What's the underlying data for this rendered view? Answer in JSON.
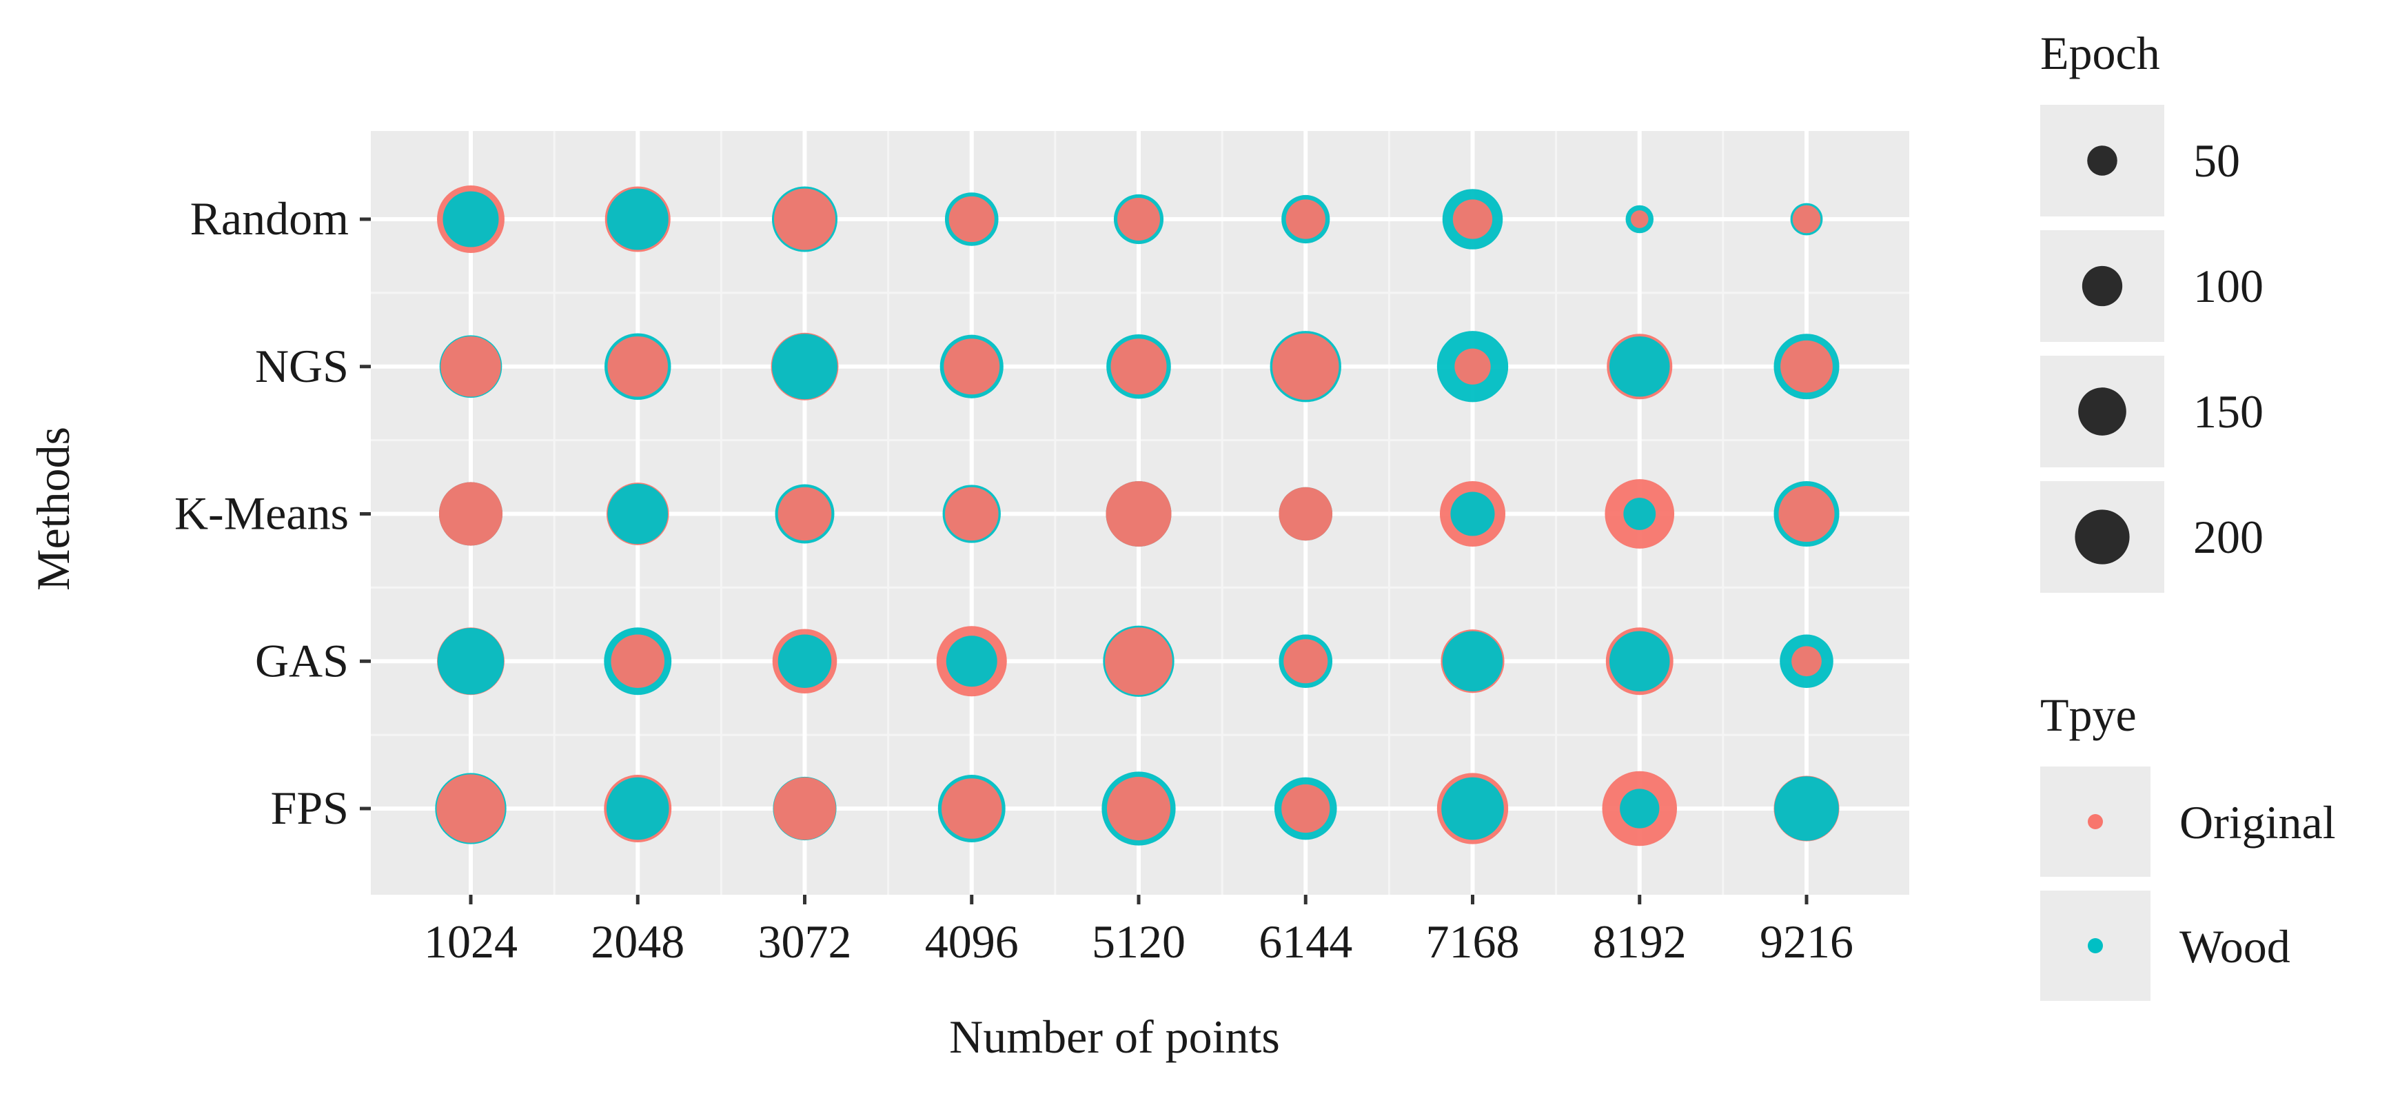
{
  "chart_data": {
    "type": "scatter",
    "title": "",
    "xlabel": "Number of points",
    "ylabel": "Methods",
    "x_categories": [
      "1024",
      "2048",
      "3072",
      "4096",
      "5120",
      "6144",
      "7168",
      "8192",
      "9216"
    ],
    "y_categories": [
      "FPS",
      "GAS",
      "K-Means",
      "NGS",
      "Random"
    ],
    "grid": true,
    "colors": {
      "Original": "#f8766d",
      "Wood": "#00bfc4",
      "panel": "#ebebeb"
    },
    "size_legend": {
      "title": "Epoch",
      "values": [
        50,
        100,
        150,
        200
      ]
    },
    "color_legend": {
      "title": "Tpye",
      "entries": [
        "Original",
        "Wood"
      ]
    },
    "series": [
      {
        "name": "Wood",
        "points": [
          {
            "x": "1024",
            "y": "Random",
            "epoch": 120
          },
          {
            "x": "2048",
            "y": "Random",
            "epoch": 145
          },
          {
            "x": "3072",
            "y": "Random",
            "epoch": 165
          },
          {
            "x": "4096",
            "y": "Random",
            "epoch": 110
          },
          {
            "x": "5120",
            "y": "Random",
            "epoch": 95
          },
          {
            "x": "6144",
            "y": "Random",
            "epoch": 90
          },
          {
            "x": "7168",
            "y": "Random",
            "epoch": 140
          },
          {
            "x": "8192",
            "y": "Random",
            "epoch": 30
          },
          {
            "x": "9216",
            "y": "Random",
            "epoch": 40
          },
          {
            "x": "1024",
            "y": "NGS",
            "epoch": 150
          },
          {
            "x": "2048",
            "y": "NGS",
            "epoch": 170
          },
          {
            "x": "3072",
            "y": "NGS",
            "epoch": 165
          },
          {
            "x": "4096",
            "y": "NGS",
            "epoch": 155
          },
          {
            "x": "5120",
            "y": "NGS",
            "epoch": 160
          },
          {
            "x": "6144",
            "y": "NGS",
            "epoch": 195
          },
          {
            "x": "7168",
            "y": "NGS",
            "epoch": 195
          },
          {
            "x": "8192",
            "y": "NGS",
            "epoch": 140
          },
          {
            "x": "9216",
            "y": "NGS",
            "epoch": 165
          },
          {
            "x": "1024",
            "y": "K-Means",
            "epoch": 155
          },
          {
            "x": "2048",
            "y": "K-Means",
            "epoch": 140
          },
          {
            "x": "3072",
            "y": "K-Means",
            "epoch": 135
          },
          {
            "x": "4096",
            "y": "K-Means",
            "epoch": 130
          },
          {
            "x": "5120",
            "y": "K-Means",
            "epoch": 165
          },
          {
            "x": "6144",
            "y": "K-Means",
            "epoch": 110
          },
          {
            "x": "7168",
            "y": "K-Means",
            "epoch": 75
          },
          {
            "x": "8192",
            "y": "K-Means",
            "epoch": 40
          },
          {
            "x": "9216",
            "y": "K-Means",
            "epoch": 165
          },
          {
            "x": "1024",
            "y": "GAS",
            "epoch": 170
          },
          {
            "x": "2048",
            "y": "GAS",
            "epoch": 175
          },
          {
            "x": "3072",
            "y": "GAS",
            "epoch": 110
          },
          {
            "x": "4096",
            "y": "GAS",
            "epoch": 100
          },
          {
            "x": "5120",
            "y": "GAS",
            "epoch": 195
          },
          {
            "x": "6144",
            "y": "GAS",
            "epoch": 110
          },
          {
            "x": "7168",
            "y": "GAS",
            "epoch": 140
          },
          {
            "x": "8192",
            "y": "GAS",
            "epoch": 140
          },
          {
            "x": "9216",
            "y": "GAS",
            "epoch": 110
          },
          {
            "x": "1024",
            "y": "FPS",
            "epoch": 195
          },
          {
            "x": "2048",
            "y": "FPS",
            "epoch": 150
          },
          {
            "x": "3072",
            "y": "FPS",
            "epoch": 155
          },
          {
            "x": "4096",
            "y": "FPS",
            "epoch": 175
          },
          {
            "x": "5120",
            "y": "FPS",
            "epoch": 210
          },
          {
            "x": "6144",
            "y": "FPS",
            "epoch": 150
          },
          {
            "x": "7168",
            "y": "FPS",
            "epoch": 150
          },
          {
            "x": "8192",
            "y": "FPS",
            "epoch": 60
          },
          {
            "x": "9216",
            "y": "FPS",
            "epoch": 160
          }
        ]
      },
      {
        "name": "Original",
        "points": [
          {
            "x": "1024",
            "y": "Random",
            "epoch": 175
          },
          {
            "x": "2048",
            "y": "Random",
            "epoch": 165
          },
          {
            "x": "3072",
            "y": "Random",
            "epoch": 145
          },
          {
            "x": "4096",
            "y": "Random",
            "epoch": 80
          },
          {
            "x": "5120",
            "y": "Random",
            "epoch": 70
          },
          {
            "x": "6144",
            "y": "Random",
            "epoch": 60
          },
          {
            "x": "7168",
            "y": "Random",
            "epoch": 60
          },
          {
            "x": "8192",
            "y": "Random",
            "epoch": 12
          },
          {
            "x": "9216",
            "y": "Random",
            "epoch": 30
          },
          {
            "x": "1024",
            "y": "NGS",
            "epoch": 140
          },
          {
            "x": "2048",
            "y": "NGS",
            "epoch": 140
          },
          {
            "x": "3072",
            "y": "NGS",
            "epoch": 175
          },
          {
            "x": "4096",
            "y": "NGS",
            "epoch": 120
          },
          {
            "x": "5120",
            "y": "NGS",
            "epoch": 120
          },
          {
            "x": "6144",
            "y": "NGS",
            "epoch": 170
          },
          {
            "x": "7168",
            "y": "NGS",
            "epoch": 50
          },
          {
            "x": "8192",
            "y": "NGS",
            "epoch": 165
          },
          {
            "x": "9216",
            "y": "NGS",
            "epoch": 105
          },
          {
            "x": "1024",
            "y": "K-Means",
            "epoch": 155
          },
          {
            "x": "2048",
            "y": "K-Means",
            "epoch": 150
          },
          {
            "x": "3072",
            "y": "K-Means",
            "epoch": 110
          },
          {
            "x": "4096",
            "y": "K-Means",
            "epoch": 110
          },
          {
            "x": "5120",
            "y": "K-Means",
            "epoch": 165
          },
          {
            "x": "6144",
            "y": "K-Means",
            "epoch": 110
          },
          {
            "x": "7168",
            "y": "K-Means",
            "epoch": 165
          },
          {
            "x": "8192",
            "y": "K-Means",
            "epoch": 185
          },
          {
            "x": "9216",
            "y": "K-Means",
            "epoch": 120
          },
          {
            "x": "1024",
            "y": "GAS",
            "epoch": 175
          },
          {
            "x": "2048",
            "y": "GAS",
            "epoch": 110
          },
          {
            "x": "3072",
            "y": "GAS",
            "epoch": 160
          },
          {
            "x": "4096",
            "y": "GAS",
            "epoch": 190
          },
          {
            "x": "5120",
            "y": "GAS",
            "epoch": 175
          },
          {
            "x": "6144",
            "y": "GAS",
            "epoch": 75
          },
          {
            "x": "7168",
            "y": "GAS",
            "epoch": 155
          },
          {
            "x": "8192",
            "y": "GAS",
            "epoch": 175
          },
          {
            "x": "9216",
            "y": "GAS",
            "epoch": 35
          },
          {
            "x": "1024",
            "y": "FPS",
            "epoch": 180
          },
          {
            "x": "2048",
            "y": "FPS",
            "epoch": 175
          },
          {
            "x": "3072",
            "y": "FPS",
            "epoch": 150
          },
          {
            "x": "4096",
            "y": "FPS",
            "epoch": 140
          },
          {
            "x": "5120",
            "y": "FPS",
            "epoch": 155
          },
          {
            "x": "6144",
            "y": "FPS",
            "epoch": 90
          },
          {
            "x": "7168",
            "y": "FPS",
            "epoch": 195
          },
          {
            "x": "8192",
            "y": "FPS",
            "epoch": 215
          },
          {
            "x": "9216",
            "y": "FPS",
            "epoch": 165
          }
        ]
      }
    ]
  }
}
